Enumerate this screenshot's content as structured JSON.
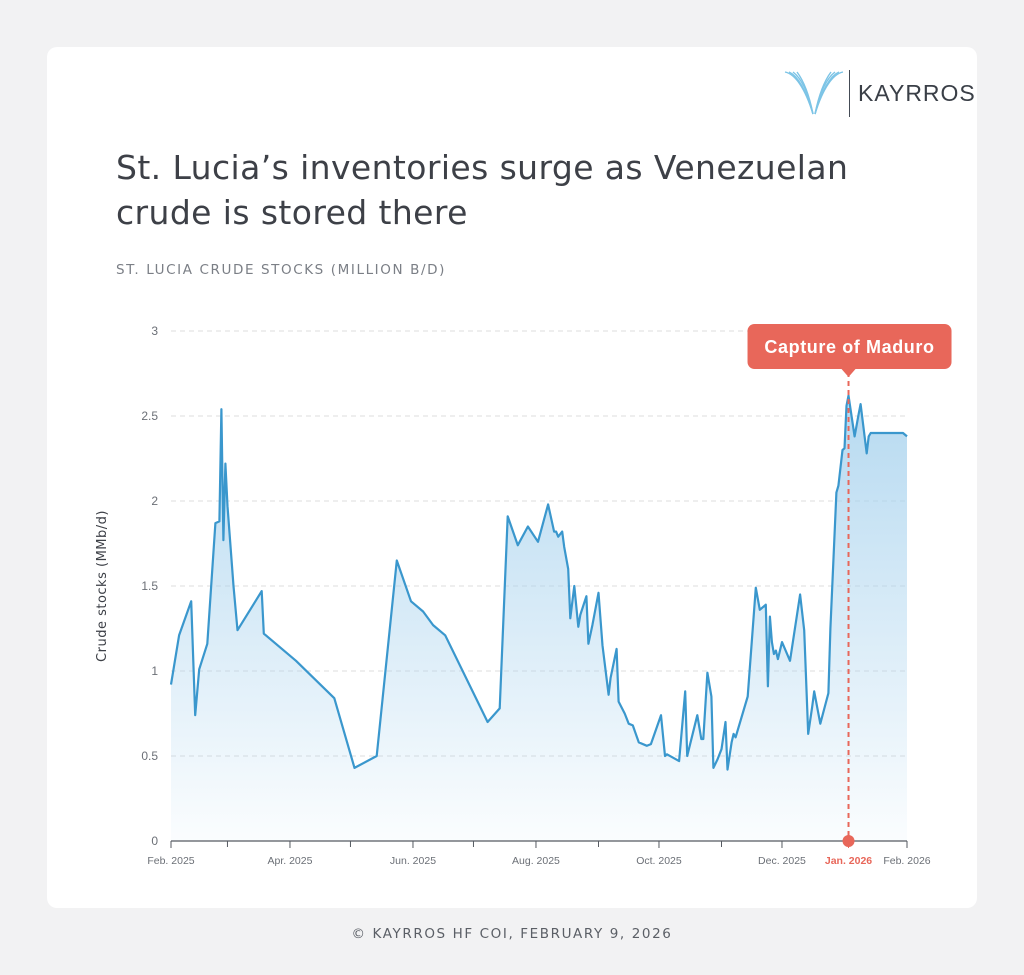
{
  "brand": {
    "name": "KAYRROS"
  },
  "title": "St. Lucia’s inventories surge as Venezuelan crude is stored there",
  "subtitle": "ST. LUCIA CRUDE STOCKS (MILLION B/D)",
  "footer": "© KAYRROS HF COI, FEBRUARY 9, 2026",
  "colors": {
    "line": "#3a97cd",
    "area_top": "#a9d3ee",
    "annotation": "#e8675a",
    "grid": "#dddddd",
    "text": "#3d4047"
  },
  "chart_data": {
    "type": "area",
    "title": "St. Lucia’s inventories surge as Venezuelan crude is stored there",
    "subtitle": "ST. LUCIA CRUDE STOCKS (MILLION B/D)",
    "ylabel": "Crude stocks (MMb/d)",
    "xlabel": "",
    "ylim": [
      0,
      3
    ],
    "xlim": [
      "2025-02-01",
      "2026-02-01"
    ],
    "yticks": [
      0,
      0.5,
      1,
      1.5,
      2,
      2.5,
      3
    ],
    "xticks": [
      {
        "date": "2025-02-01",
        "label": "Feb. 2025"
      },
      {
        "date": "2025-04-01",
        "label": "Apr. 2025"
      },
      {
        "date": "2025-06-01",
        "label": "Jun. 2025"
      },
      {
        "date": "2025-08-01",
        "label": "Aug. 2025"
      },
      {
        "date": "2025-10-01",
        "label": "Oct. 2025"
      },
      {
        "date": "2025-12-01",
        "label": "Dec. 2025"
      },
      {
        "date": "2026-01-03",
        "label": "Jan. 2026",
        "highlight": true
      },
      {
        "date": "2026-02-01",
        "label": "Feb. 2026"
      }
    ],
    "grid": true,
    "annotation": {
      "date": "2026-01-03",
      "label": "Capture of Maduro"
    },
    "series": [
      {
        "x": [
          "2025-02-01",
          "2025-02-05",
          "2025-02-11",
          "2025-02-13",
          "2025-02-15",
          "2025-02-19",
          "2025-02-23",
          "2025-02-25",
          "2025-02-26",
          "2025-02-27",
          "2025-02-28",
          "2025-03-01",
          "2025-03-04",
          "2025-03-06",
          "2025-03-18",
          "2025-03-19",
          "2025-04-04",
          "2025-04-23",
          "2025-05-03",
          "2025-05-14",
          "2025-05-24",
          "2025-05-31",
          "2025-06-06",
          "2025-06-11",
          "2025-06-17",
          "2025-07-08",
          "2025-07-14",
          "2025-07-18",
          "2025-07-23",
          "2025-07-28",
          "2025-08-02",
          "2025-08-07",
          "2025-08-10",
          "2025-08-11",
          "2025-08-12",
          "2025-08-14",
          "2025-08-15",
          "2025-08-17",
          "2025-08-18",
          "2025-08-20",
          "2025-08-22",
          "2025-08-23",
          "2025-08-26",
          "2025-08-27",
          "2025-08-29",
          "2025-09-01",
          "2025-09-03",
          "2025-09-06",
          "2025-09-07",
          "2025-09-10",
          "2025-09-11",
          "2025-09-14",
          "2025-09-16",
          "2025-09-18",
          "2025-09-21",
          "2025-09-25",
          "2025-09-27",
          "2025-10-02",
          "2025-10-04",
          "2025-10-05",
          "2025-10-11",
          "2025-10-14",
          "2025-10-15",
          "2025-10-20",
          "2025-10-22",
          "2025-10-23",
          "2025-10-25",
          "2025-10-27",
          "2025-10-28",
          "2025-10-30",
          "2025-11-01",
          "2025-11-03",
          "2025-11-04",
          "2025-11-06",
          "2025-11-07",
          "2025-11-08",
          "2025-11-14",
          "2025-11-18",
          "2025-11-20",
          "2025-11-23",
          "2025-11-24",
          "2025-11-25",
          "2025-11-26",
          "2025-11-27",
          "2025-11-28",
          "2025-11-29",
          "2025-12-01",
          "2025-12-05",
          "2025-12-10",
          "2025-12-12",
          "2025-12-14",
          "2025-12-16",
          "2025-12-17",
          "2025-12-20",
          "2025-12-24",
          "2025-12-25",
          "2025-12-28",
          "2025-12-29",
          "2025-12-31",
          "2026-01-01",
          "2026-01-02",
          "2026-01-03",
          "2026-01-06",
          "2026-01-08",
          "2026-01-09",
          "2026-01-12",
          "2026-01-13",
          "2026-01-14",
          "2026-01-15",
          "2026-01-16",
          "2026-01-17",
          "2026-01-19",
          "2026-01-21",
          "2026-01-23",
          "2026-01-26",
          "2026-01-28",
          "2026-01-30",
          "2026-02-01"
        ],
        "y": [
          0.92,
          1.21,
          1.41,
          0.74,
          1.01,
          1.16,
          1.87,
          1.88,
          2.54,
          1.77,
          2.22,
          1.97,
          1.5,
          1.24,
          1.47,
          1.22,
          1.06,
          0.84,
          0.43,
          0.5,
          1.65,
          1.41,
          1.35,
          1.27,
          1.21,
          0.7,
          0.78,
          1.91,
          1.74,
          1.85,
          1.76,
          1.98,
          1.82,
          1.82,
          1.79,
          1.82,
          1.73,
          1.6,
          1.31,
          1.5,
          1.26,
          1.33,
          1.44,
          1.16,
          1.27,
          1.46,
          1.15,
          0.86,
          0.96,
          1.13,
          0.82,
          0.75,
          0.69,
          0.68,
          0.58,
          0.56,
          0.57,
          0.74,
          0.5,
          0.51,
          0.47,
          0.88,
          0.5,
          0.74,
          0.6,
          0.6,
          0.99,
          0.85,
          0.43,
          0.48,
          0.54,
          0.7,
          0.42,
          0.58,
          0.63,
          0.61,
          0.85,
          1.49,
          1.36,
          1.39,
          0.91,
          1.32,
          1.17,
          1.1,
          1.12,
          1.07,
          1.17,
          1.06,
          1.45,
          1.24,
          0.63,
          0.79,
          0.88,
          0.69,
          0.87,
          1.25,
          2.05,
          2.09,
          2.3,
          2.31,
          2.56,
          2.62,
          2.38,
          2.51,
          2.57,
          2.28,
          2.38,
          2.4,
          2.4,
          2.4,
          2.4,
          2.4,
          2.4,
          2.4,
          2.4,
          2.4,
          2.4,
          2.38
        ]
      }
    ]
  }
}
